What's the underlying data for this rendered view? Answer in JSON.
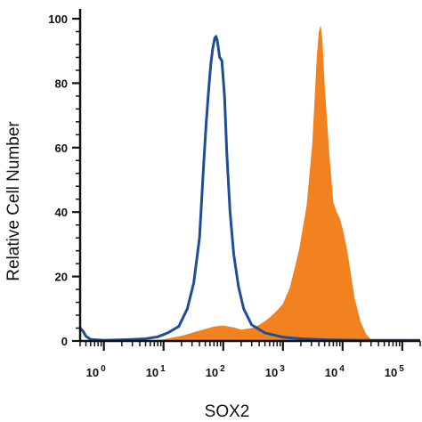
{
  "chart_data": {
    "type": "area",
    "xlabel": "SOX2",
    "ylabel": "Relative Cell Number",
    "xscale": "log",
    "xlim": [
      0.4,
      200000
    ],
    "ylim": [
      0,
      100
    ],
    "yticks": [
      0,
      20,
      40,
      60,
      80,
      100
    ],
    "yticklabels": [
      "0",
      "20",
      "40",
      "60",
      "80",
      "100"
    ],
    "xticks": [
      {
        "base": "10",
        "exp": "0",
        "value": 1
      },
      {
        "base": "10",
        "exp": "1",
        "value": 10
      },
      {
        "base": "10",
        "exp": "2",
        "value": 100
      },
      {
        "base": "10",
        "exp": "3",
        "value": 1000
      },
      {
        "base": "10",
        "exp": "4",
        "value": 10000
      },
      {
        "base": "10",
        "exp": "5",
        "value": 100000
      }
    ],
    "series": [
      {
        "style": "outline",
        "color": "#1f4e96",
        "x": [
          0.4,
          0.45,
          0.5,
          0.6,
          1,
          3,
          5,
          8,
          12,
          18,
          25,
          32,
          40,
          47,
          52,
          57,
          62,
          67,
          72,
          76,
          80,
          87,
          95,
          105,
          115,
          130,
          150,
          180,
          220,
          300,
          500,
          1000,
          2000,
          5000,
          20000,
          200000
        ],
        "y": [
          4,
          3,
          1.5,
          0.5,
          0.2,
          0.5,
          0.7,
          1.3,
          2.6,
          4.5,
          10,
          18,
          32,
          55,
          68,
          78,
          86,
          91,
          94,
          94.5,
          93,
          88,
          87,
          76,
          58,
          40,
          27,
          17,
          10,
          5,
          2.5,
          1.2,
          0.7,
          0.4,
          0.2,
          0.2
        ]
      },
      {
        "style": "filled",
        "color": "#f28120",
        "x": [
          3,
          10,
          20,
          40,
          70,
          100,
          150,
          200,
          300,
          400,
          500,
          600,
          800,
          1000,
          1300,
          1600,
          1900,
          2200,
          2500,
          2800,
          3100,
          3400,
          3700,
          4000,
          4300,
          4600,
          5000,
          6000,
          7000,
          8000,
          9000,
          10000,
          12000,
          14000,
          16000,
          20000,
          25000,
          30000,
          60000
        ],
        "y": [
          0,
          0.5,
          1.6,
          3.2,
          4.5,
          4.8,
          4.2,
          3.5,
          4,
          5,
          6.2,
          7.3,
          9.5,
          11.5,
          16.5,
          23,
          29,
          36,
          42,
          52,
          61,
          75,
          88,
          96,
          98,
          93,
          80,
          58,
          43,
          40,
          38,
          35,
          28,
          20,
          13,
          6,
          2,
          0.5,
          0
        ]
      }
    ]
  }
}
